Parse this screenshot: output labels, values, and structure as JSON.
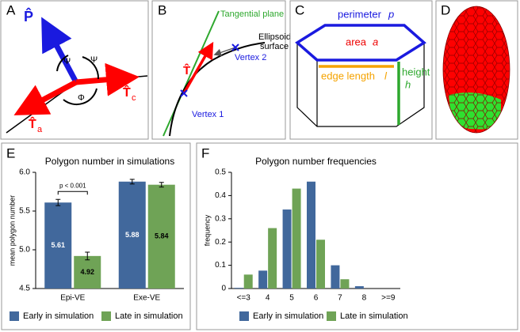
{
  "panel_a": {
    "letter": "A",
    "p_hat": "P̂",
    "psi_1": "Ψ",
    "psi_2": "Ψ",
    "phi": "Φ",
    "t_hat_c": "T̂",
    "sub_c": "c",
    "t_hat_a": "T̂",
    "sub_a": "a"
  },
  "panel_b": {
    "letter": "B",
    "tangential_plane": "Tangential plane",
    "ellipsoid_1": "Ellipsoid",
    "ellipsoid_2": "surface",
    "t_hat": "T̂",
    "vertex_2": "Vertex 2",
    "vertex_1": "Vertex 1"
  },
  "panel_c": {
    "letter": "C",
    "perimeter": "perimeter",
    "p": "p",
    "area": "area",
    "a": "a",
    "edge_length": "edge length",
    "l": "l",
    "height": "height",
    "h": "h"
  },
  "panel_d": {
    "letter": "D"
  },
  "chart_data": [
    {
      "type": "bar",
      "panel_label": "E",
      "title": "Polygon number in simulations",
      "y_label": "mean polygon number",
      "categories": [
        "Epi-VE",
        "Exe-VE"
      ],
      "series": [
        {
          "name": "Early in simulation",
          "color": "#41689c",
          "values": [
            5.61,
            5.88
          ],
          "errors": [
            0.04,
            0.03
          ]
        },
        {
          "name": "Late in simulation",
          "color": "#6fa356",
          "values": [
            4.92,
            5.84
          ],
          "errors": [
            0.05,
            0.03
          ]
        }
      ],
      "ylim": [
        4.5,
        6.0
      ],
      "yticks": [
        4.5,
        {
          "value": 5,
          "label": "5.0"
        },
        5.5,
        {
          "value": 6,
          "label": "6.0"
        }
      ],
      "data_labels": true,
      "annotation": "p < 0.001"
    },
    {
      "type": "bar",
      "panel_label": "F",
      "title": "Polygon number frequencies",
      "y_label": "frequency",
      "categories": [
        "<=3",
        "4",
        "5",
        "6",
        "7",
        "8",
        ">=9"
      ],
      "series": [
        {
          "name": "Early in simulation",
          "color": "#41689c",
          "values": [
            0.003,
            0.077,
            0.34,
            0.46,
            0.1,
            0.01,
            0
          ]
        },
        {
          "name": "Late in simulation",
          "color": "#6fa356",
          "values": [
            0.06,
            0.26,
            0.43,
            0.21,
            0.04,
            0,
            0
          ]
        }
      ],
      "ylim": [
        0,
        0.5
      ],
      "yticks": [
        0,
        0.1,
        0.2,
        0.3,
        0.4,
        0.5
      ],
      "data_labels": false
    }
  ]
}
